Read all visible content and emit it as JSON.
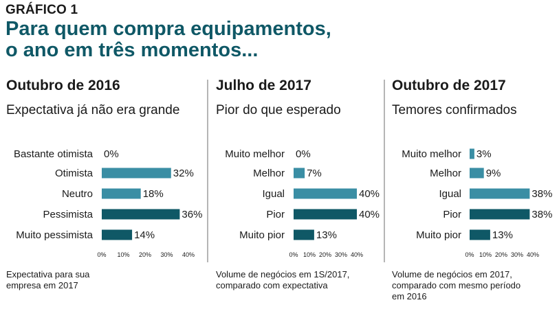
{
  "header": {
    "kicker": "GRÁFICO 1",
    "headline_line1": "Para quem compra equipamentos,",
    "headline_line2": "o ano em três momentos..."
  },
  "colors": {
    "light_bar": "#3a8ea4",
    "dark_bar": "#0f5866",
    "headline": "#0f5866"
  },
  "chart_data": [
    {
      "type": "bar",
      "orientation": "horizontal",
      "title": "Outubro de 2016",
      "subtitle": "Expectativa já não era grande",
      "note_lines": [
        "Expectativa para sua",
        "empresa em 2017"
      ],
      "categories": [
        "Bastante otimista",
        "Otimista",
        "Neutro",
        "Pessimista",
        "Muito pessimista"
      ],
      "values": [
        0,
        32,
        18,
        36,
        14
      ],
      "value_labels": [
        "0%",
        "32%",
        "18%",
        "36%",
        "14%"
      ],
      "bar_colors": [
        "light",
        "light",
        "light",
        "dark",
        "dark"
      ],
      "xlim": [
        0,
        40
      ],
      "ticks": [
        "0%",
        "10%",
        "20%",
        "30%",
        "40%"
      ]
    },
    {
      "type": "bar",
      "orientation": "horizontal",
      "title": "Julho de 2017",
      "subtitle": "Pior do que esperado",
      "note_lines": [
        "Volume de negócios em 1S/2017,",
        "comparado com expectativa"
      ],
      "categories": [
        "Muito melhor",
        "Melhor",
        "Igual",
        "Pior",
        "Muito pior"
      ],
      "values": [
        0,
        7,
        40,
        40,
        13
      ],
      "value_labels": [
        "0%",
        "7%",
        "40%",
        "40%",
        "13%"
      ],
      "bar_colors": [
        "light",
        "light",
        "light",
        "dark",
        "dark"
      ],
      "xlim": [
        0,
        40
      ],
      "ticks": [
        "0%",
        "10%",
        "20%",
        "30%",
        "40%"
      ]
    },
    {
      "type": "bar",
      "orientation": "horizontal",
      "title": "Outubro de 2017",
      "subtitle": "Temores confirmados",
      "note_lines": [
        "Volume de negócios em 2017,",
        "comparado com mesmo período",
        "em 2016"
      ],
      "categories": [
        "Muito melhor",
        "Melhor",
        "Igual",
        "Pior",
        "Muito pior"
      ],
      "values": [
        3,
        9,
        38,
        38,
        13
      ],
      "value_labels": [
        "3%",
        "9%",
        "38%",
        "38%",
        "13%"
      ],
      "bar_colors": [
        "light",
        "light",
        "light",
        "dark",
        "dark"
      ],
      "xlim": [
        0,
        40
      ],
      "ticks": [
        "0%",
        "10%",
        "20%",
        "30%",
        "40%"
      ]
    }
  ]
}
